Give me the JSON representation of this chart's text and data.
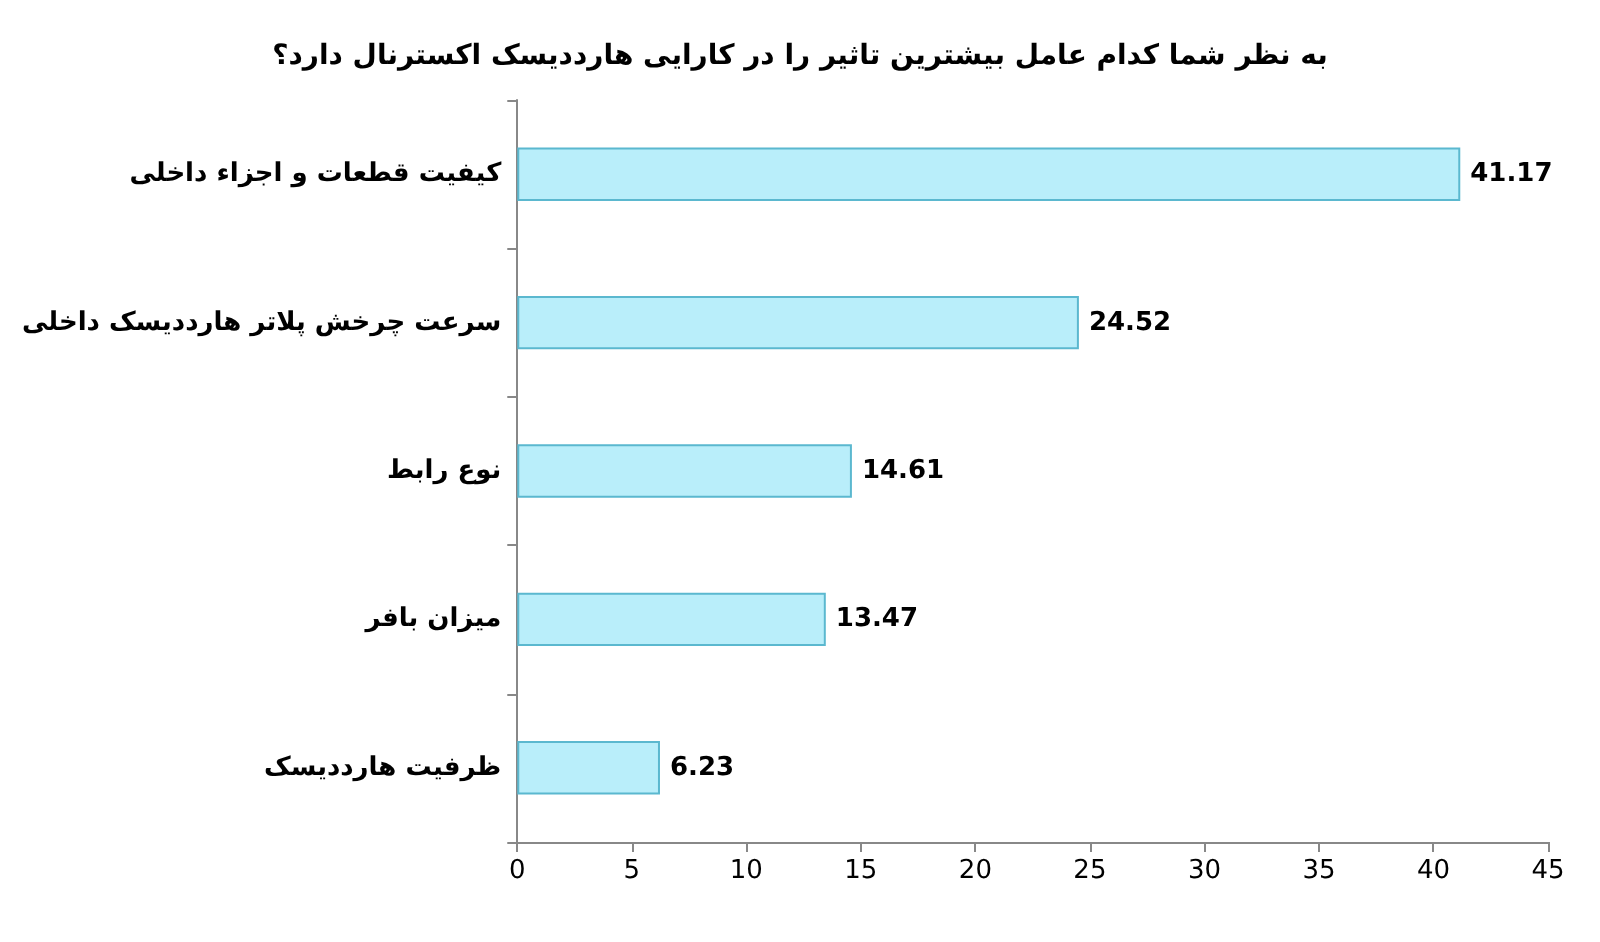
{
  "chart_data": {
    "type": "bar",
    "orientation": "horizontal",
    "title": "به نظر شما کدام عامل بیشترین تاثیر را در کارایی هارددیسک اکسترنال دارد؟",
    "categories": [
      "کیفیت قطعات و اجزاء داخلی",
      "سرعت چرخش پلاتر هارددیسک داخلی",
      "نوع رابط",
      "میزان بافر",
      "ظرفیت هارددیسک"
    ],
    "values": [
      41.17,
      24.52,
      14.61,
      13.47,
      6.23
    ],
    "color": "#b9eefa",
    "xlim": [
      0,
      45
    ],
    "xticks": [
      0,
      5,
      10,
      15,
      20,
      25,
      30,
      35,
      40,
      45
    ],
    "data_labels": true
  }
}
